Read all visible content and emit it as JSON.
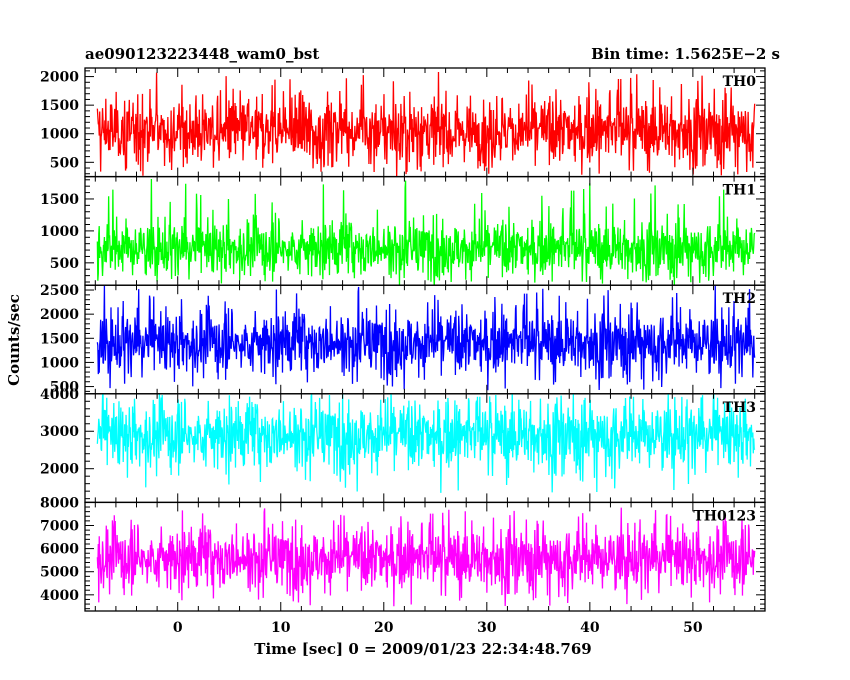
{
  "header": {
    "left": "ae090123223448_wam0_bst",
    "right": "Bin time: 1.5625E−2 s"
  },
  "chart_data": {
    "type": "line",
    "title": "ae090123223448_wam0_bst",
    "xlabel": "Time [sec] 0 = 2009/01/23 22:34:48.769",
    "ylabel": "Counts/sec",
    "xlim": [
      -9,
      57
    ],
    "x_data_range": [
      -7.8,
      56.0
    ],
    "x_ticks": [
      0,
      10,
      20,
      30,
      40,
      50
    ],
    "panels": [
      {
        "name": "TH0",
        "color": "#ff0000",
        "ylim": [
          250,
          2150
        ],
        "ticks": [
          500,
          1000,
          1500,
          2000
        ],
        "mean": 1050,
        "typical_low": 480,
        "typical_high": 1650,
        "peak": 2100,
        "min": 280
      },
      {
        "name": "TH1",
        "color": "#00ff00",
        "ylim": [
          150,
          1850
        ],
        "ticks": [
          500,
          1000,
          1500
        ],
        "mean": 720,
        "typical_low": 330,
        "typical_high": 1200,
        "peak": 1830,
        "min": 190
      },
      {
        "name": "TH2",
        "color": "#0000ff",
        "ylim": [
          350,
          2600
        ],
        "ticks": [
          500,
          1000,
          1500,
          2000,
          2500
        ],
        "mean": 1400,
        "typical_low": 760,
        "typical_high": 2050,
        "peak": 2600,
        "min": 420
      },
      {
        "name": "TH3",
        "color": "#00ffff",
        "ylim": [
          1100,
          4000
        ],
        "ticks": [
          2000,
          3000,
          4000
        ],
        "mean": 2880,
        "typical_low": 1950,
        "typical_high": 3750,
        "peak": 4000,
        "min": 1350
      },
      {
        "name": "TH0123",
        "color": "#ff00ff",
        "ylim": [
          3300,
          8000
        ],
        "ticks": [
          4000,
          5000,
          6000,
          7000,
          8000
        ],
        "mean": 5560,
        "typical_low": 4200,
        "typical_high": 6900,
        "peak": 7800,
        "min": 3500
      }
    ]
  }
}
